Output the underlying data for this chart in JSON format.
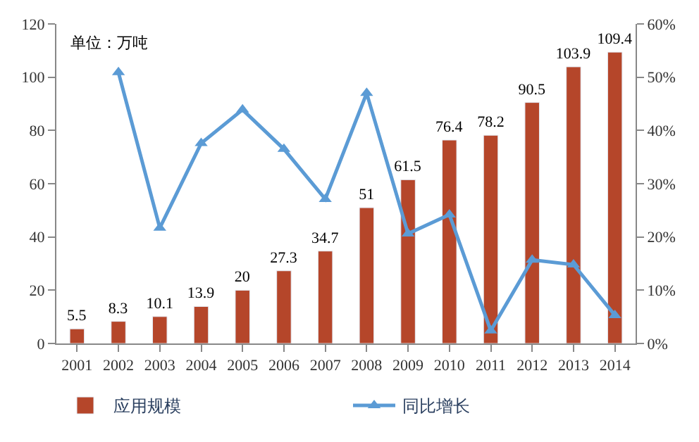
{
  "chart_data": {
    "type": "bar",
    "annotations": [
      "单位：万吨"
    ],
    "categories": [
      "2001",
      "2002",
      "2003",
      "2004",
      "2005",
      "2006",
      "2007",
      "2008",
      "2009",
      "2010",
      "2011",
      "2012",
      "2013",
      "2014"
    ],
    "series": [
      {
        "name": "应用规模",
        "color": "#b5462a",
        "values": [
          5.5,
          8.3,
          10.1,
          13.9,
          20,
          27.3,
          34.7,
          51,
          61.5,
          76.4,
          78.2,
          90.5,
          103.9,
          109.4
        ],
        "data_labels": true
      },
      {
        "name": "同比增长",
        "type": "line",
        "axis": "y2",
        "color": "#5b9bd5",
        "marker": "triangle",
        "values": [
          null,
          50.9,
          21.7,
          37.6,
          43.9,
          36.5,
          27.1,
          47,
          20.6,
          24.2,
          2.4,
          15.7,
          14.8,
          5.3
        ]
      }
    ],
    "ylim": [
      0,
      120
    ],
    "yticks": [
      0,
      20,
      40,
      60,
      80,
      100,
      120
    ],
    "y2lim": [
      0,
      60
    ],
    "y2ticks": [
      {
        "value": 0,
        "label": "0%"
      },
      {
        "value": 10,
        "label": "10%"
      },
      {
        "value": 20,
        "label": "20%"
      },
      {
        "value": 30,
        "label": "30%"
      },
      {
        "value": 40,
        "label": "40%"
      },
      {
        "value": 50,
        "label": "50%"
      },
      {
        "value": 60,
        "label": "60%"
      }
    ],
    "legend": "bottom"
  }
}
